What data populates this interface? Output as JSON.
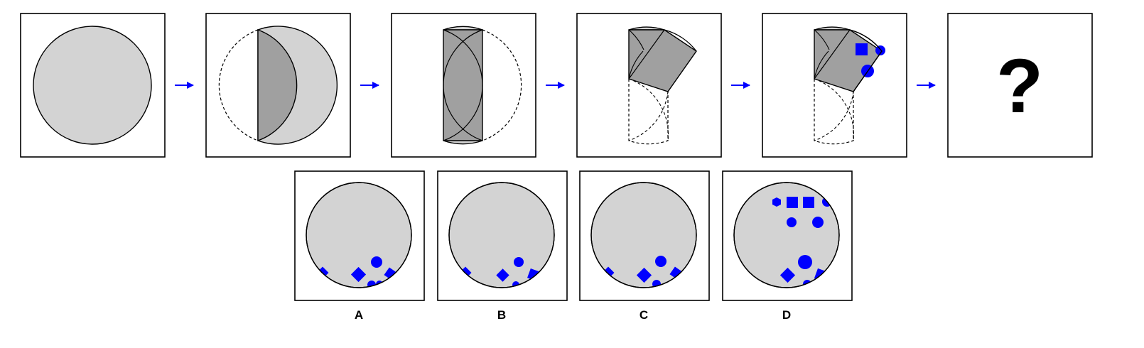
{
  "puzzle": {
    "question_mark": "?",
    "colors": {
      "paper": "#d3d3d3",
      "fold": "#a0a0a0",
      "punch": "#0000ff",
      "arrow": "#0000ff",
      "frame": "#000000",
      "dashed": "#000000"
    },
    "step_count": 6,
    "option_labels": [
      "A",
      "B",
      "C",
      "D"
    ]
  }
}
